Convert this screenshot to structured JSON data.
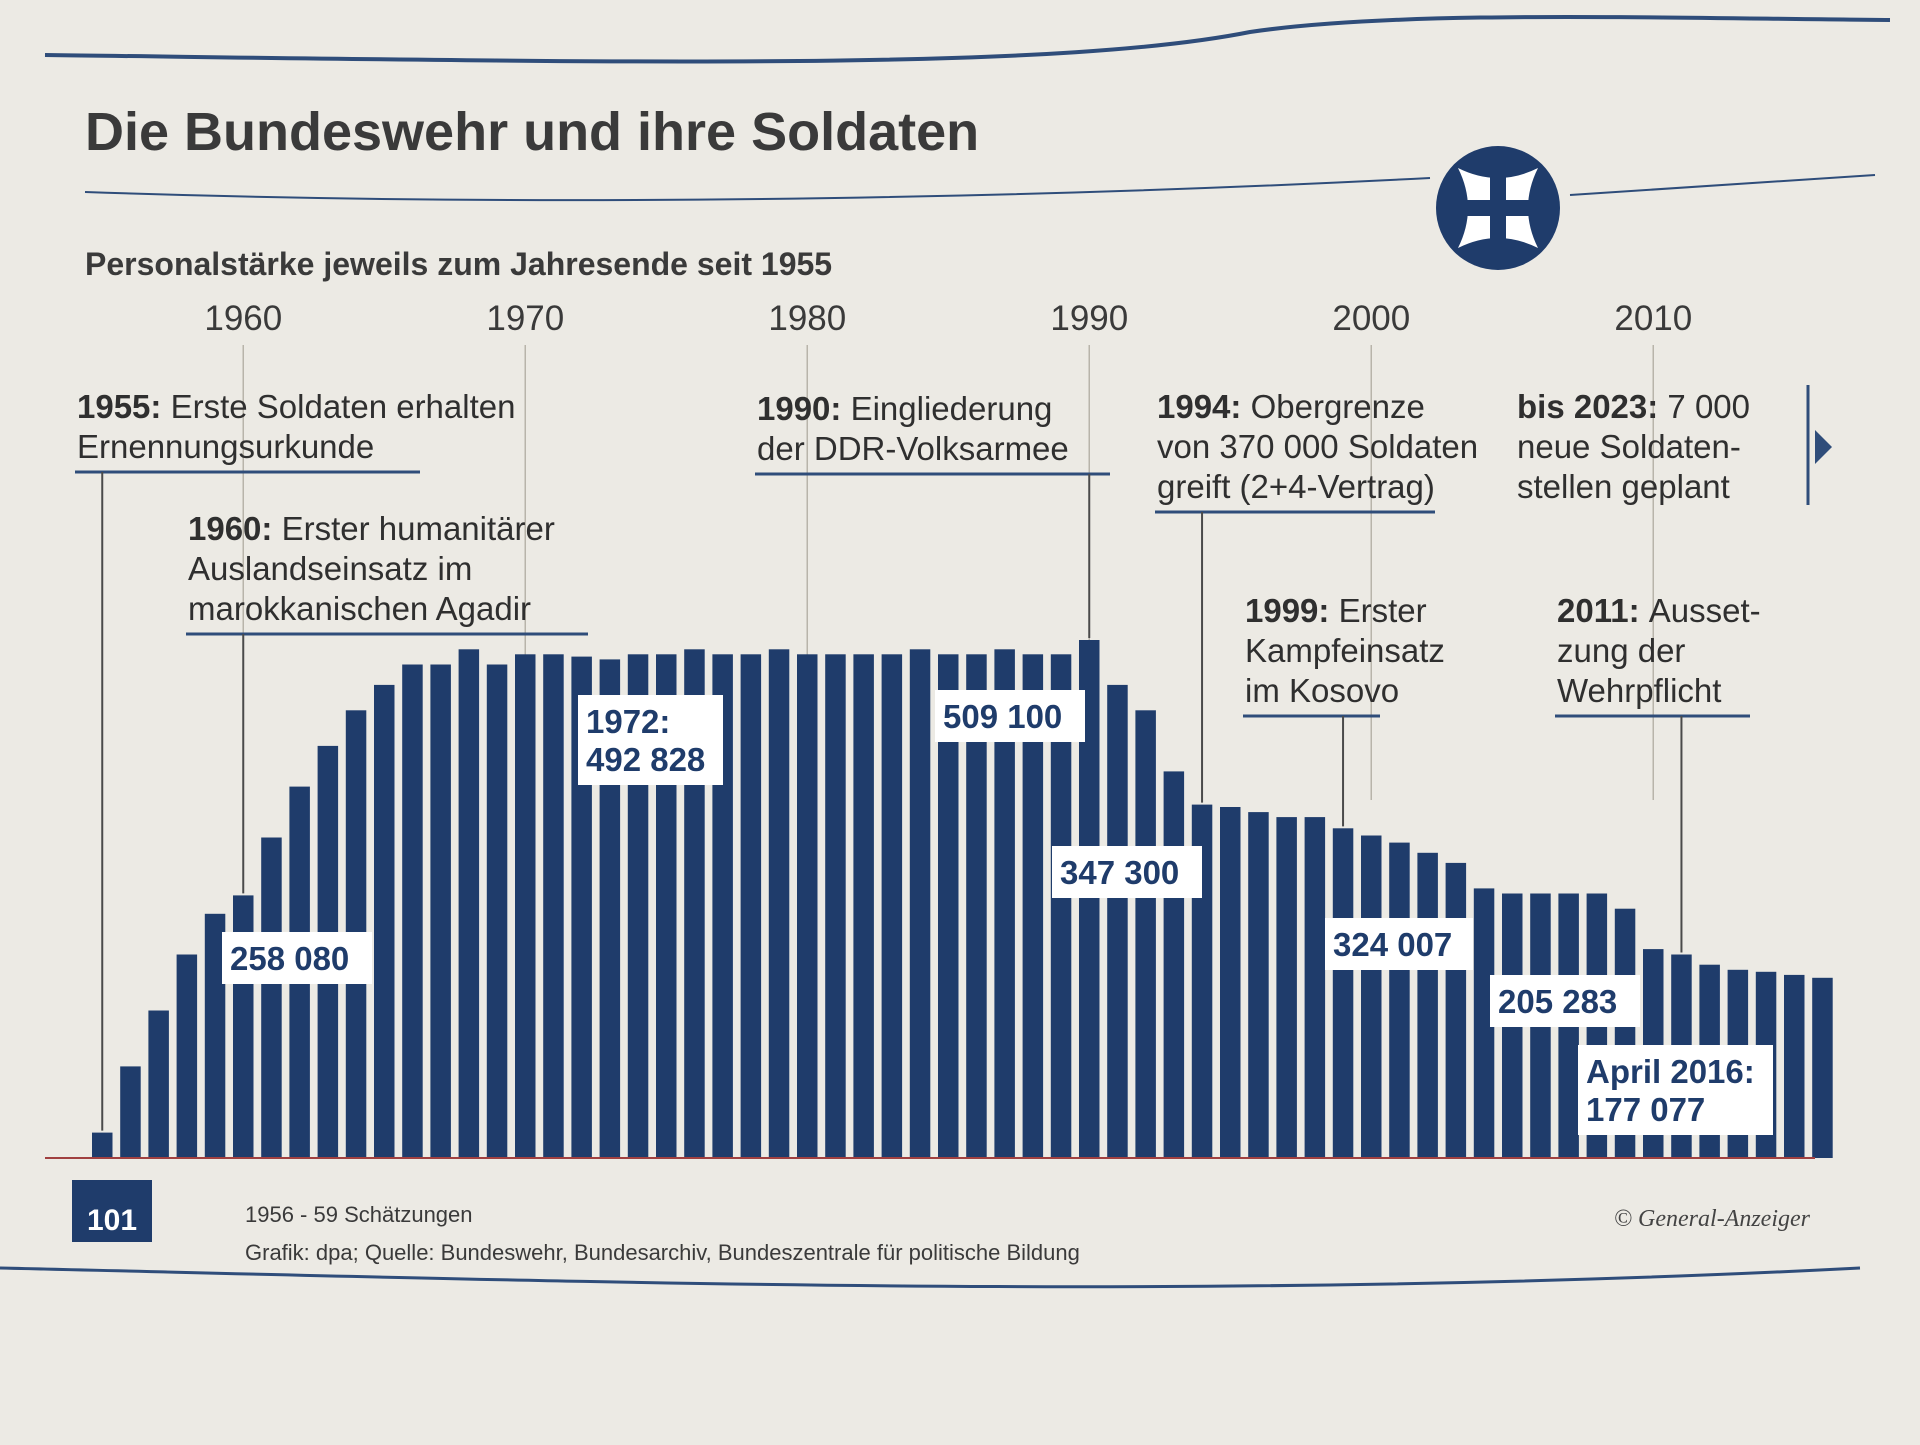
{
  "colors": {
    "bar": "#1f3c6b",
    "text": "#2f2f2f",
    "background": "#eceae4",
    "line": "#2f4d7a"
  },
  "header": {
    "title": "Die Bundeswehr und ihre Soldaten",
    "subtitle": "Personalstärke jeweils zum Jahresende seit 1955",
    "emblem_icon": "iron-cross-icon"
  },
  "annotations": [
    {
      "year": "1955:",
      "lines": [
        "Erste Soldaten erhalten",
        "Ernennungsurkunde"
      ]
    },
    {
      "year": "1960:",
      "lines": [
        "Erster humanitärer",
        "Auslandseinsatz im",
        "marokkanischen Agadir"
      ]
    },
    {
      "year": "1990:",
      "lines": [
        "Eingliederung",
        "der DDR-Volksarmee"
      ]
    },
    {
      "year": "1994:",
      "lines": [
        "Obergrenze",
        "von 370 000 Soldaten",
        "greift (2+4-Vertrag)"
      ]
    },
    {
      "year": "1999:",
      "lines": [
        "Erster",
        "Kampfeinsatz",
        "im Kosovo"
      ]
    },
    {
      "year": "bis 2023:",
      "lines": [
        "7 000",
        "neue Soldaten-",
        "stellen geplant"
      ]
    },
    {
      "year": "2011:",
      "lines": [
        "Ausset-",
        "zung der",
        "Wehrpflicht"
      ]
    }
  ],
  "value_labels": [
    {
      "lines": [
        "258 080"
      ]
    },
    {
      "lines": [
        "1972:",
        "492 828"
      ]
    },
    {
      "lines": [
        "509 100"
      ]
    },
    {
      "lines": [
        "347 300"
      ]
    },
    {
      "lines": [
        "324 007"
      ]
    },
    {
      "lines": [
        "205 283"
      ]
    },
    {
      "lines": [
        "April 2016:",
        "177 077"
      ]
    }
  ],
  "footer": {
    "badge": "101",
    "note1": "1956 - 59 Schätzungen",
    "note2": "Grafik: dpa; Quelle: Bundeswehr, Bundesarchiv, Bundeszentrale für politische Bildung",
    "credit": "© General-Anzeiger"
  },
  "chart_data": {
    "type": "bar",
    "title": "Die Bundeswehr und ihre Soldaten",
    "subtitle": "Personalstärke jeweils zum Jahresende seit 1955",
    "x_ticks": [
      "1960",
      "1970",
      "1980",
      "1990",
      "2000",
      "2010"
    ],
    "ylim": [
      0,
      540000
    ],
    "grid": false,
    "series": [
      {
        "x": [
          "1955",
          "1956",
          "1957",
          "1958",
          "1959",
          "1960",
          "1961",
          "1962",
          "1963",
          "1964",
          "1965",
          "1966",
          "1967",
          "1968",
          "1969",
          "1970",
          "1971",
          "1972",
          "1973",
          "1974",
          "1975",
          "1976",
          "1977",
          "1978",
          "1979",
          "1980",
          "1981",
          "1982",
          "1983",
          "1984",
          "1985",
          "1986",
          "1987",
          "1988",
          "1989",
          "1990",
          "1991",
          "1992",
          "1993",
          "1994",
          "1995",
          "1996",
          "1997",
          "1998",
          "1999",
          "2000",
          "2001",
          "2002",
          "2003",
          "2004",
          "2005",
          "2006",
          "2007",
          "2008",
          "2009",
          "2010",
          "2011",
          "2012",
          "2013",
          "2014",
          "2015",
          "April 2016"
        ],
        "values": [
          25000,
          90000,
          145000,
          200000,
          240000,
          258080,
          315000,
          365000,
          405000,
          440000,
          465000,
          485000,
          485000,
          500000,
          485000,
          495000,
          495000,
          492828,
          490000,
          495000,
          495000,
          500000,
          495000,
          495000,
          500000,
          495000,
          495000,
          495000,
          495000,
          500000,
          495000,
          495000,
          500000,
          495000,
          495000,
          509100,
          465000,
          440000,
          380000,
          347300,
          345000,
          340000,
          335000,
          335000,
          324007,
          317000,
          310000,
          300000,
          290000,
          265000,
          260000,
          260000,
          260000,
          260000,
          245000,
          205283,
          200000,
          190000,
          185000,
          183000,
          180000,
          177077
        ]
      }
    ],
    "value_labels": [
      "258 080",
      "1972: 492 828",
      "509 100",
      "347 300",
      "324 007",
      "205 283",
      "April 2016: 177 077"
    ],
    "notes": [
      "1956 - 59 Schätzungen",
      "Grafik: dpa; Quelle: Bundeswehr, Bundesarchiv, Bundeszentrale für politische Bildung"
    ]
  }
}
